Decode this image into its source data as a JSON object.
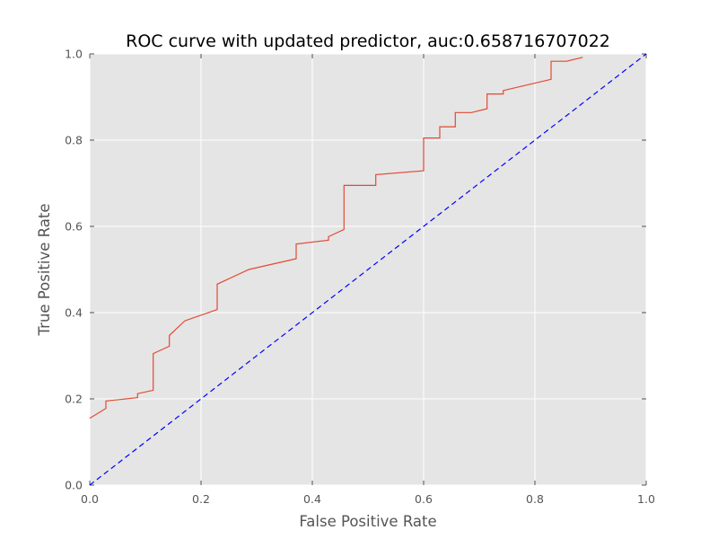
{
  "chart_data": {
    "type": "line",
    "title": "ROC curve with updated predictor, auc:0.658716707022",
    "xlabel": "False Positive Rate",
    "ylabel": "True Positive Rate",
    "xlim": [
      0,
      1
    ],
    "ylim": [
      0,
      1
    ],
    "grid": true,
    "x_ticks": [
      "0.0",
      "0.2",
      "0.4",
      "0.6",
      "0.8",
      "1.0"
    ],
    "y_ticks": [
      "0.0",
      "0.2",
      "0.4",
      "0.6",
      "0.8",
      "1.0"
    ],
    "series": [
      {
        "color": "#e24a33",
        "style": "solid",
        "x": [
          0.0,
          0.029,
          0.029,
          0.086,
          0.086,
          0.114,
          0.114,
          0.143,
          0.143,
          0.171,
          0.229,
          0.229,
          0.286,
          0.371,
          0.371,
          0.429,
          0.429,
          0.457,
          0.457,
          0.514,
          0.514,
          0.6,
          0.6,
          0.629,
          0.629,
          0.657,
          0.657,
          0.686,
          0.714,
          0.714,
          0.743,
          0.743,
          0.829,
          0.829,
          0.857,
          0.886
        ],
        "y": [
          0.155,
          0.178,
          0.195,
          0.203,
          0.212,
          0.22,
          0.305,
          0.322,
          0.347,
          0.381,
          0.407,
          0.466,
          0.5,
          0.525,
          0.559,
          0.568,
          0.576,
          0.593,
          0.695,
          0.695,
          0.72,
          0.729,
          0.805,
          0.805,
          0.831,
          0.831,
          0.864,
          0.864,
          0.873,
          0.907,
          0.907,
          0.915,
          0.941,
          0.983,
          0.983,
          0.992
        ]
      },
      {
        "color": "#0000ff",
        "style": "dashed",
        "x": [
          0,
          1
        ],
        "y": [
          0,
          1
        ]
      }
    ]
  },
  "colors": {
    "plot_background": "#e5e5e5",
    "grid": "#ffffff",
    "roc_curve": "#e24a33",
    "diagonal": "#0000ff"
  }
}
